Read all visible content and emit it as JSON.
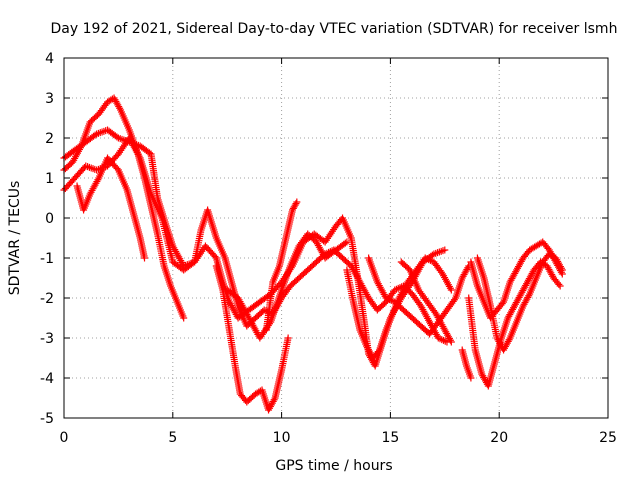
{
  "chart_data": {
    "type": "scatter",
    "title": "Day 192 of 2021, Sidereal Day-to-day VTEC variation (SDTVAR) for receiver lsmh",
    "xlabel": "GPS time / hours",
    "ylabel": "SDTVAR / TECUs",
    "xlim": [
      0,
      25
    ],
    "ylim": [
      -5,
      4
    ],
    "xticks": [
      "0",
      "5",
      "10",
      "15",
      "20",
      "25"
    ],
    "yticks": [
      "-5",
      "-4",
      "-3",
      "-2",
      "-1",
      "0",
      "1",
      "2",
      "3",
      "4"
    ],
    "grid": true,
    "marker": "+",
    "series": [
      {
        "name": "SDTVAR",
        "color": "#ff0000",
        "segments": [
          [
            [
              0,
              1.5
            ],
            [
              0.5,
              1.7
            ],
            [
              1.0,
              1.9
            ],
            [
              1.5,
              2.1
            ],
            [
              2.0,
              2.2
            ],
            [
              2.5,
              2.0
            ],
            [
              3.0,
              1.9
            ],
            [
              3.5,
              1.8
            ],
            [
              4.0,
              1.6
            ],
            [
              4.3,
              0.5
            ],
            [
              4.7,
              -0.2
            ],
            [
              5.0,
              -0.7
            ],
            [
              5.5,
              -1.2
            ],
            [
              6.0,
              -1.1
            ],
            [
              6.5,
              -0.7
            ],
            [
              7.0,
              -1.0
            ],
            [
              7.3,
              -1.6
            ],
            [
              7.6,
              -2.1
            ],
            [
              8.0,
              -2.5
            ],
            [
              8.5,
              -2.3
            ],
            [
              9.0,
              -2.1
            ],
            [
              9.5,
              -1.9
            ],
            [
              10.0,
              -1.6
            ],
            [
              10.5,
              -1.2
            ],
            [
              11.0,
              -0.6
            ],
            [
              11.5,
              -0.4
            ],
            [
              12.0,
              -0.6
            ],
            [
              12.5,
              -0.2
            ],
            [
              12.8,
              0.0
            ],
            [
              13.2,
              -0.5
            ],
            [
              13.5,
              -1.5
            ],
            [
              13.8,
              -2.6
            ],
            [
              14.0,
              -3.4
            ],
            [
              14.3,
              -3.7
            ],
            [
              14.7,
              -3.0
            ],
            [
              15.0,
              -2.5
            ],
            [
              15.5,
              -2.0
            ],
            [
              16.0,
              -1.6
            ],
            [
              16.5,
              -1.1
            ],
            [
              17.0,
              -0.9
            ],
            [
              17.5,
              -0.8
            ]
          ],
          [
            [
              0,
              0.7
            ],
            [
              0.5,
              1.0
            ],
            [
              1.0,
              1.3
            ],
            [
              1.5,
              1.2
            ],
            [
              2.0,
              1.3
            ],
            [
              2.5,
              1.6
            ],
            [
              3.0,
              2.0
            ],
            [
              3.5,
              1.5
            ],
            [
              4.0,
              0.6
            ],
            [
              4.5,
              0.0
            ],
            [
              5.0,
              -1.1
            ],
            [
              5.5,
              -1.3
            ],
            [
              6.0,
              -1.1
            ],
            [
              6.3,
              -0.3
            ],
            [
              6.6,
              0.2
            ],
            [
              7.0,
              -0.5
            ],
            [
              7.4,
              -1.0
            ],
            [
              7.7,
              -1.6
            ],
            [
              8.0,
              -2.2
            ],
            [
              8.4,
              -2.7
            ],
            [
              8.8,
              -2.5
            ],
            [
              9.2,
              -2.3
            ],
            [
              9.6,
              -2.4
            ],
            [
              10.0,
              -2.0
            ],
            [
              10.4,
              -1.7
            ],
            [
              10.8,
              -1.5
            ],
            [
              11.2,
              -1.3
            ],
            [
              11.6,
              -1.1
            ],
            [
              12.0,
              -0.9
            ],
            [
              12.4,
              -0.8
            ],
            [
              12.8,
              -1.0
            ],
            [
              13.2,
              -1.2
            ],
            [
              13.6,
              -1.6
            ],
            [
              14.0,
              -2.0
            ],
            [
              14.4,
              -2.3
            ],
            [
              14.8,
              -2.1
            ],
            [
              15.2,
              -1.8
            ],
            [
              15.6,
              -1.7
            ],
            [
              16.0,
              -1.9
            ],
            [
              16.4,
              -2.2
            ],
            [
              16.8,
              -2.6
            ],
            [
              17.2,
              -3.0
            ],
            [
              17.6,
              -3.1
            ]
          ],
          [
            [
              0,
              1.2
            ],
            [
              0.4,
              1.4
            ],
            [
              0.8,
              1.8
            ],
            [
              1.2,
              2.4
            ],
            [
              1.6,
              2.6
            ],
            [
              2.0,
              2.9
            ],
            [
              2.3,
              3.0
            ],
            [
              2.6,
              2.7
            ],
            [
              3.0,
              2.2
            ],
            [
              3.4,
              1.6
            ],
            [
              3.7,
              1.0
            ],
            [
              4.0,
              0.3
            ],
            [
              4.3,
              -0.4
            ],
            [
              4.6,
              -1.2
            ],
            [
              4.9,
              -1.7
            ],
            [
              5.2,
              -2.1
            ],
            [
              5.5,
              -2.5
            ]
          ],
          [
            [
              0.6,
              0.8
            ],
            [
              0.9,
              0.2
            ],
            [
              1.2,
              0.6
            ],
            [
              1.6,
              1.0
            ],
            [
              2.0,
              1.5
            ],
            [
              2.5,
              1.2
            ],
            [
              2.9,
              0.7
            ],
            [
              3.2,
              0.1
            ],
            [
              3.5,
              -0.5
            ],
            [
              3.7,
              -1.0
            ]
          ],
          [
            [
              7.0,
              -1.2
            ],
            [
              7.3,
              -1.8
            ],
            [
              7.6,
              -2.8
            ],
            [
              7.9,
              -3.8
            ],
            [
              8.1,
              -4.4
            ],
            [
              8.4,
              -4.6
            ],
            [
              8.8,
              -4.4
            ],
            [
              9.1,
              -4.3
            ],
            [
              9.4,
              -4.8
            ],
            [
              9.7,
              -4.5
            ],
            [
              10.0,
              -3.8
            ],
            [
              10.3,
              -3.0
            ]
          ],
          [
            [
              7.5,
              -1.8
            ],
            [
              8.0,
              -2.0
            ],
            [
              8.5,
              -2.5
            ],
            [
              9.0,
              -3.0
            ],
            [
              9.5,
              -2.6
            ],
            [
              10.0,
              -1.8
            ],
            [
              10.4,
              -1.2
            ],
            [
              10.8,
              -0.7
            ],
            [
              11.2,
              -0.4
            ],
            [
              11.6,
              -0.6
            ],
            [
              12.0,
              -1.0
            ],
            [
              12.5,
              -0.8
            ],
            [
              13.0,
              -0.6
            ]
          ],
          [
            [
              9.3,
              -2.8
            ],
            [
              9.6,
              -1.6
            ],
            [
              9.9,
              -1.2
            ],
            [
              10.2,
              -0.5
            ],
            [
              10.5,
              0.2
            ],
            [
              10.7,
              0.4
            ]
          ],
          [
            [
              13.0,
              -1.3
            ],
            [
              13.3,
              -2.1
            ],
            [
              13.6,
              -2.8
            ],
            [
              13.9,
              -3.2
            ],
            [
              14.2,
              -3.5
            ],
            [
              14.5,
              -3.3
            ],
            [
              14.8,
              -2.8
            ],
            [
              15.1,
              -2.4
            ],
            [
              15.4,
              -2.0
            ],
            [
              15.8,
              -1.6
            ],
            [
              16.2,
              -1.3
            ],
            [
              16.6,
              -1.0
            ],
            [
              17.0,
              -1.1
            ],
            [
              17.4,
              -1.4
            ],
            [
              17.8,
              -1.8
            ]
          ],
          [
            [
              14.0,
              -1.0
            ],
            [
              14.4,
              -1.6
            ],
            [
              14.8,
              -2.0
            ],
            [
              15.2,
              -2.1
            ],
            [
              15.6,
              -2.3
            ],
            [
              16.0,
              -2.5
            ],
            [
              16.4,
              -2.7
            ],
            [
              16.8,
              -2.9
            ],
            [
              17.2,
              -2.6
            ],
            [
              17.6,
              -2.3
            ],
            [
              18.0,
              -2.0
            ],
            [
              18.3,
              -1.5
            ],
            [
              18.6,
              -1.2
            ]
          ],
          [
            [
              15.5,
              -1.1
            ],
            [
              15.9,
              -1.3
            ],
            [
              16.3,
              -1.8
            ],
            [
              16.7,
              -2.1
            ],
            [
              17.1,
              -2.4
            ],
            [
              17.5,
              -2.8
            ],
            [
              17.8,
              -3.1
            ]
          ],
          [
            [
              18.7,
              -1.1
            ],
            [
              19.0,
              -1.7
            ],
            [
              19.3,
              -2.1
            ],
            [
              19.6,
              -2.5
            ],
            [
              19.9,
              -2.3
            ],
            [
              20.2,
              -2.1
            ],
            [
              20.5,
              -1.6
            ],
            [
              20.8,
              -1.3
            ],
            [
              21.1,
              -1.0
            ],
            [
              21.4,
              -0.8
            ],
            [
              21.7,
              -0.7
            ],
            [
              22.0,
              -0.6
            ],
            [
              22.3,
              -0.8
            ],
            [
              22.6,
              -1.1
            ],
            [
              22.9,
              -1.4
            ]
          ],
          [
            [
              18.6,
              -2.0
            ],
            [
              18.9,
              -3.3
            ],
            [
              19.2,
              -3.9
            ],
            [
              19.5,
              -4.2
            ],
            [
              19.8,
              -3.6
            ],
            [
              20.1,
              -3.0
            ],
            [
              20.4,
              -2.5
            ],
            [
              20.7,
              -2.2
            ],
            [
              21.0,
              -1.9
            ],
            [
              21.3,
              -1.6
            ],
            [
              21.6,
              -1.3
            ],
            [
              21.9,
              -1.1
            ],
            [
              22.2,
              -1.2
            ],
            [
              22.5,
              -1.5
            ],
            [
              22.8,
              -1.7
            ]
          ],
          [
            [
              19.0,
              -1.0
            ],
            [
              19.3,
              -1.5
            ],
            [
              19.6,
              -2.2
            ],
            [
              19.9,
              -3.0
            ],
            [
              20.2,
              -3.3
            ],
            [
              20.5,
              -3.0
            ],
            [
              20.8,
              -2.6
            ],
            [
              21.1,
              -2.2
            ],
            [
              21.4,
              -1.9
            ],
            [
              21.7,
              -1.5
            ],
            [
              22.0,
              -1.1
            ],
            [
              22.3,
              -0.9
            ],
            [
              22.6,
              -1.0
            ],
            [
              22.9,
              -1.3
            ]
          ],
          [
            [
              18.3,
              -3.3
            ],
            [
              18.5,
              -3.7
            ],
            [
              18.7,
              -4.0
            ]
          ]
        ]
      }
    ]
  }
}
